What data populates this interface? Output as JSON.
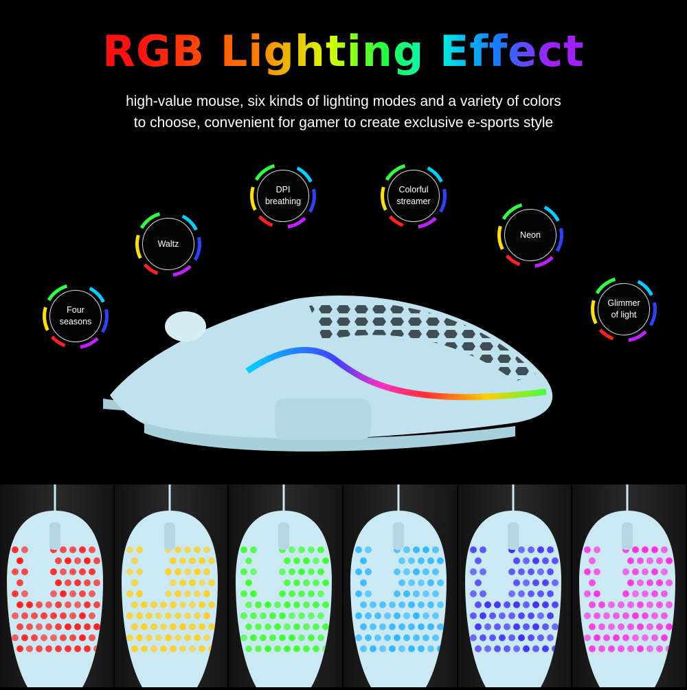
{
  "title": "RGB Lighting Effect",
  "subtitle": [
    "high-value mouse, six kinds of lighting modes and a variety of colors",
    "to choose, convenient for gamer to create exclusive e-sports style"
  ],
  "modes": [
    {
      "label": "Four\nseasons"
    },
    {
      "label": "Waltz"
    },
    {
      "label": "DPI\nbreathing"
    },
    {
      "label": "Colorful\nstreamer"
    },
    {
      "label": "Neon"
    },
    {
      "label": "Glimmer\nof light"
    }
  ],
  "mouse_body_color": "#bfe2ee",
  "panel_colors": [
    "#ff2020",
    "#ffd020",
    "#40ff30",
    "#30b8ff",
    "#4030ff",
    "#ff30e0"
  ]
}
